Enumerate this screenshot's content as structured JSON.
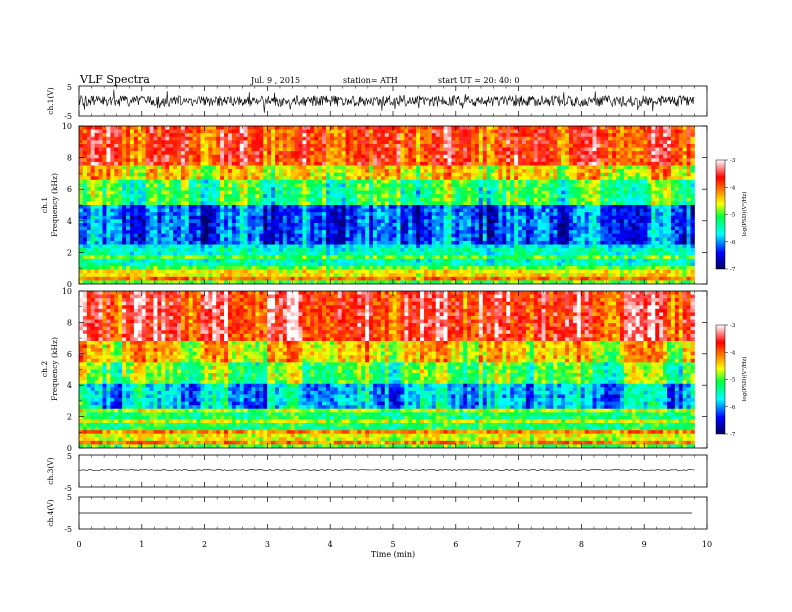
{
  "header": {
    "title": "VLF  Spectra",
    "date": "Jul.  9  , 2015",
    "station": "station= ATH",
    "start": "start  UT  =   20: 40: 0"
  },
  "chart_data": [
    {
      "type": "line",
      "panel": "ch1-waveform",
      "ylabel": "ch.1(V)",
      "ylim": [
        -5,
        5
      ],
      "yticks": [
        "5",
        "-5"
      ],
      "description_values": {
        "baseline": 0,
        "typical_amplitude": 1.5
      }
    },
    {
      "type": "heatmap",
      "panel": "ch1-spectrogram",
      "ylabel_top": "ch.1",
      "ylabel": "Frequency  (kHz)",
      "ylim": [
        0,
        10
      ],
      "yticks": [
        "0",
        "2",
        "4",
        "6",
        "8",
        "10"
      ],
      "freq_bands_khz": [
        {
          "from": 0,
          "to": 0.3,
          "level": -5
        },
        {
          "from": 0.3,
          "to": 1.0,
          "level": -4.5
        },
        {
          "from": 1.0,
          "to": 2.2,
          "level": -5.5
        },
        {
          "from": 2.2,
          "to": 5.0,
          "level": -6.2
        },
        {
          "from": 5.0,
          "to": 6.5,
          "level": -5.2
        },
        {
          "from": 6.5,
          "to": 7.5,
          "level": -4.5
        },
        {
          "from": 7.5,
          "to": 10,
          "level": -3.8
        }
      ],
      "colorbar": {
        "label": "log(PSD)(V²/Hz)",
        "ticks": [
          "-3",
          "-4",
          "-5",
          "-6",
          "-7"
        ],
        "range": [
          -7,
          -3
        ]
      }
    },
    {
      "type": "heatmap",
      "panel": "ch2-spectrogram",
      "ylabel_top": "ch.2",
      "ylabel": "Frequency  (kHz)",
      "ylim": [
        0,
        10
      ],
      "yticks": [
        "0",
        "2",
        "4",
        "6",
        "8",
        "10"
      ],
      "freq_bands_khz": [
        {
          "from": 0,
          "to": 0.3,
          "level": -5
        },
        {
          "from": 0.3,
          "to": 1.2,
          "level": -4.6
        },
        {
          "from": 1.2,
          "to": 2.5,
          "level": -5.2
        },
        {
          "from": 2.5,
          "to": 4.0,
          "level": -5.8
        },
        {
          "from": 4.0,
          "to": 5.5,
          "level": -5.0
        },
        {
          "from": 5.5,
          "to": 6.8,
          "level": -4.4
        },
        {
          "from": 6.8,
          "to": 10,
          "level": -3.6
        }
      ],
      "colorbar": {
        "label": "log(PSD)(V²/Hz)",
        "ticks": [
          "-3",
          "-4",
          "-5",
          "-6",
          "-7"
        ],
        "range": [
          -7,
          -3
        ]
      }
    },
    {
      "type": "line",
      "panel": "ch3-waveform",
      "ylabel": "ch.3(V)",
      "ylim": [
        -5,
        5
      ],
      "yticks": [
        "5",
        "-5"
      ]
    },
    {
      "type": "line",
      "panel": "ch4-waveform",
      "ylabel": "ch.4(V)",
      "ylim": [
        -5,
        5
      ],
      "yticks": [
        "5",
        "-5"
      ]
    }
  ],
  "xaxis": {
    "label": "Time  (min)",
    "xlim": [
      0,
      10
    ],
    "ticks": [
      "0",
      "1",
      "2",
      "3",
      "4",
      "5",
      "6",
      "7",
      "8",
      "9",
      "10"
    ],
    "data_end_min": 9.8
  },
  "colors": {
    "colormap": [
      "#000080",
      "#0000ff",
      "#00ffff",
      "#00ff00",
      "#ffff00",
      "#ff8000",
      "#ff0000",
      "#ffffff"
    ]
  }
}
